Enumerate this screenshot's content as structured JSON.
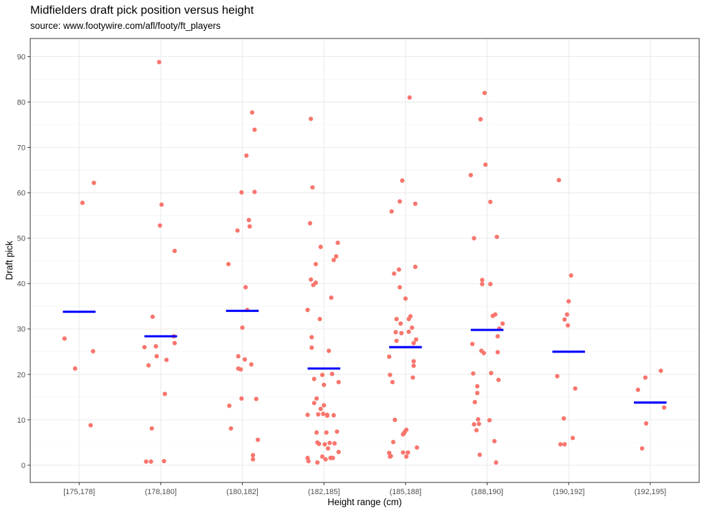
{
  "chart_data": {
    "type": "scatter",
    "title": "Midfielders draft pick position versus height",
    "subtitle": "source: www.footywire.com/afl/footy/ft_players",
    "xlabel": "Height range (cm)",
    "ylabel": "Draft pick",
    "categories": [
      "[175,178]",
      "(178,180]",
      "(180,182]",
      "(182,185]",
      "(185,188]",
      "(188,190]",
      "(190,192]",
      "(192,195]"
    ],
    "ylim": [
      -3.8,
      94
    ],
    "yticks": [
      0,
      10,
      20,
      30,
      40,
      50,
      60,
      70,
      80,
      90
    ],
    "grid": true,
    "point_color": "#F8766D",
    "mean_color": "#0000FF",
    "means": [
      33.8,
      28.4,
      34,
      21.3,
      26,
      29.8,
      25,
      13.8
    ],
    "points": [
      [
        [
          -0.18,
          27.9
        ],
        [
          -0.05,
          21.3
        ],
        [
          0.04,
          57.8
        ],
        [
          0.14,
          8.8
        ],
        [
          0.17,
          25.1
        ],
        [
          0.18,
          62.2
        ]
      ],
      [
        [
          -0.2,
          26
        ],
        [
          -0.18,
          0.8
        ],
        [
          -0.15,
          22
        ],
        [
          -0.12,
          0.8
        ],
        [
          -0.11,
          8.1
        ],
        [
          -0.1,
          32.7
        ],
        [
          -0.06,
          26.2
        ],
        [
          -0.05,
          24
        ],
        [
          -0.02,
          88.8
        ],
        [
          -0.01,
          52.8
        ],
        [
          0.01,
          57.4
        ],
        [
          0.04,
          0.9
        ],
        [
          0.05,
          15.7
        ],
        [
          0.07,
          23.2
        ],
        [
          0.16,
          28.4
        ],
        [
          0.17,
          26.9
        ],
        [
          0.17,
          47.2
        ]
      ],
      [
        [
          -0.17,
          44.3
        ],
        [
          -0.16,
          13.1
        ],
        [
          -0.14,
          8.1
        ],
        [
          -0.06,
          51.7
        ],
        [
          -0.05,
          21.3
        ],
        [
          -0.05,
          24
        ],
        [
          -0.02,
          21.1
        ],
        [
          -0.01,
          60.1
        ],
        [
          -0.01,
          14.7
        ],
        [
          0,
          30.3
        ],
        [
          0.03,
          23.3
        ],
        [
          0.04,
          39.2
        ],
        [
          0.05,
          68.2
        ],
        [
          0.06,
          34.2
        ],
        [
          0.08,
          54
        ],
        [
          0.09,
          52.6
        ],
        [
          0.11,
          22.2
        ],
        [
          0.12,
          77.7
        ],
        [
          0.13,
          2.2
        ],
        [
          0.13,
          1.3
        ],
        [
          0.15,
          60.2
        ],
        [
          0.15,
          73.9
        ],
        [
          0.17,
          14.6
        ],
        [
          0.19,
          5.6
        ]
      ],
      [
        [
          -0.2,
          34.2
        ],
        [
          -0.2,
          11.1
        ],
        [
          -0.2,
          1.6
        ],
        [
          -0.19,
          0.9
        ],
        [
          -0.17,
          53.3
        ],
        [
          -0.16,
          40.9
        ],
        [
          -0.16,
          76.3
        ],
        [
          -0.15,
          28.2
        ],
        [
          -0.15,
          25.9
        ],
        [
          -0.14,
          61.2
        ],
        [
          -0.13,
          39.7
        ],
        [
          -0.12,
          13.7
        ],
        [
          -0.12,
          19
        ],
        [
          -0.1,
          44.3
        ],
        [
          -0.1,
          40.2
        ],
        [
          -0.09,
          14.7
        ],
        [
          -0.09,
          7.2
        ],
        [
          -0.08,
          0.6
        ],
        [
          -0.08,
          5
        ],
        [
          -0.07,
          11.2
        ],
        [
          -0.06,
          4.7
        ],
        [
          -0.05,
          32.2
        ],
        [
          -0.04,
          48.1
        ],
        [
          -0.04,
          12.4
        ],
        [
          -0.02,
          19.9
        ],
        [
          -0.02,
          1.9
        ],
        [
          -0.01,
          11.3
        ],
        [
          0,
          13.2
        ],
        [
          0,
          17.7
        ],
        [
          0.01,
          4.6
        ],
        [
          0.02,
          1.3
        ],
        [
          0.03,
          7.2
        ],
        [
          0.04,
          11.1
        ],
        [
          0.04,
          10.9
        ],
        [
          0.05,
          3.7
        ],
        [
          0.06,
          25.2
        ],
        [
          0.07,
          4.9
        ],
        [
          0.08,
          1.6
        ],
        [
          0.09,
          1.6
        ],
        [
          0.09,
          36.9
        ],
        [
          0.1,
          20.1
        ],
        [
          0.11,
          1.6
        ],
        [
          0.12,
          45.2
        ],
        [
          0.12,
          11
        ],
        [
          0.13,
          4.8
        ],
        [
          0.15,
          46
        ],
        [
          0.16,
          7.4
        ],
        [
          0.17,
          49
        ],
        [
          0.18,
          2.9
        ],
        [
          0.18,
          18.3
        ]
      ],
      [
        [
          -0.2,
          2.7
        ],
        [
          -0.2,
          23.9
        ],
        [
          -0.19,
          1.9
        ],
        [
          -0.19,
          19.9
        ],
        [
          -0.18,
          2
        ],
        [
          -0.17,
          55.9
        ],
        [
          -0.16,
          18.3
        ],
        [
          -0.15,
          5.1
        ],
        [
          -0.14,
          42.2
        ],
        [
          -0.13,
          10
        ],
        [
          -0.12,
          29.3
        ],
        [
          -0.11,
          27.4
        ],
        [
          -0.11,
          32.2
        ],
        [
          -0.08,
          43.1
        ],
        [
          -0.07,
          39.2
        ],
        [
          -0.07,
          58.1
        ],
        [
          -0.06,
          31.2
        ],
        [
          -0.05,
          29.1
        ],
        [
          -0.04,
          62.7
        ],
        [
          -0.03,
          6.8
        ],
        [
          -0.03,
          2.8
        ],
        [
          -0.02,
          7
        ],
        [
          -0.01,
          7.3
        ],
        [
          0,
          36.7
        ],
        [
          0.01,
          1.9
        ],
        [
          0.01,
          7.8
        ],
        [
          0.03,
          2.8
        ],
        [
          0.04,
          32.2
        ],
        [
          0.04,
          29.4
        ],
        [
          0.05,
          81
        ],
        [
          0.06,
          32.8
        ],
        [
          0.08,
          30.3
        ],
        [
          0.09,
          19.3
        ],
        [
          0.1,
          26.9
        ],
        [
          0.1,
          22.9
        ],
        [
          0.1,
          21.9
        ],
        [
          0.12,
          57.6
        ],
        [
          0.12,
          43.7
        ],
        [
          0.13,
          27.7
        ],
        [
          0.14,
          3.9
        ]
      ],
      [
        [
          -0.2,
          63.9
        ],
        [
          -0.18,
          26.7
        ],
        [
          -0.17,
          20.2
        ],
        [
          -0.16,
          50
        ],
        [
          -0.16,
          9
        ],
        [
          -0.15,
          13.9
        ],
        [
          -0.13,
          7.7
        ],
        [
          -0.12,
          17.4
        ],
        [
          -0.12,
          15.9
        ],
        [
          -0.11,
          10.1
        ],
        [
          -0.1,
          9.1
        ],
        [
          -0.09,
          2.3
        ],
        [
          -0.08,
          76.2
        ],
        [
          -0.07,
          25.2
        ],
        [
          -0.06,
          39.9
        ],
        [
          -0.06,
          40.8
        ],
        [
          -0.04,
          24.7
        ],
        [
          -0.03,
          82
        ],
        [
          -0.02,
          66.2
        ],
        [
          0.03,
          9.9
        ],
        [
          0.04,
          39.9
        ],
        [
          0.04,
          58
        ],
        [
          0.05,
          20.3
        ],
        [
          0.07,
          32.9
        ],
        [
          0.09,
          5.3
        ],
        [
          0.1,
          33.2
        ],
        [
          0.11,
          0.6
        ],
        [
          0.12,
          50.3
        ],
        [
          0.13,
          28.4
        ],
        [
          0.13,
          24.9
        ],
        [
          0.14,
          18.8
        ],
        [
          0.15,
          30.1
        ],
        [
          0.19,
          31.2
        ]
      ],
      [
        [
          -0.14,
          19.6
        ],
        [
          -0.12,
          62.8
        ],
        [
          -0.1,
          4.6
        ],
        [
          -0.06,
          10.3
        ],
        [
          -0.05,
          32.1
        ],
        [
          -0.05,
          4.6
        ],
        [
          -0.02,
          33.2
        ],
        [
          -0.01,
          30.8
        ],
        [
          0,
          36.1
        ],
        [
          0.03,
          41.8
        ],
        [
          0.05,
          6
        ],
        [
          0.08,
          16.9
        ]
      ],
      [
        [
          -0.15,
          16.6
        ],
        [
          -0.1,
          3.7
        ],
        [
          -0.05,
          9.2
        ],
        [
          -0.06,
          19.3
        ],
        [
          0.13,
          20.8
        ],
        [
          0.17,
          12.7
        ]
      ]
    ]
  }
}
